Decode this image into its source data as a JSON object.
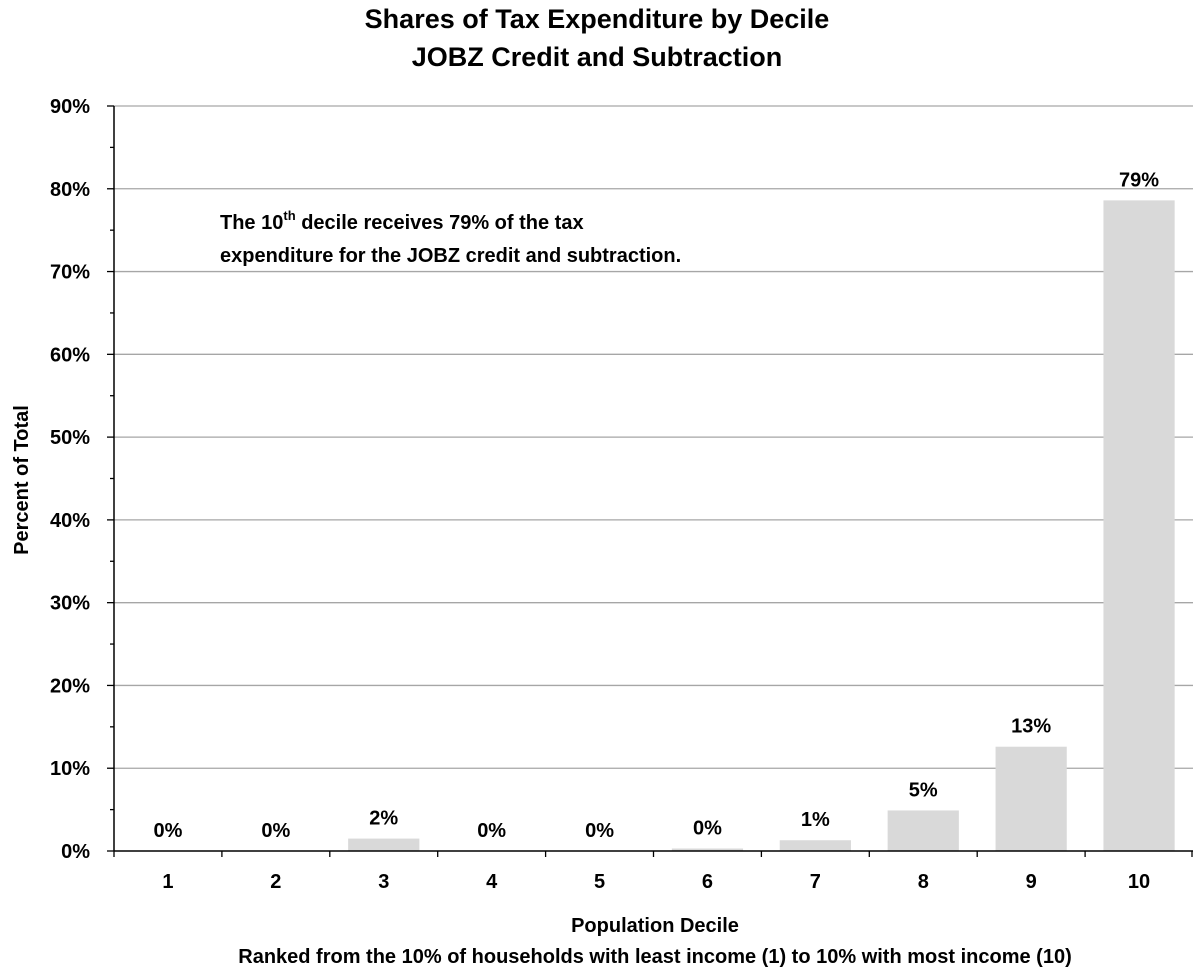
{
  "chart_data": {
    "type": "bar",
    "title": "Shares of Tax Expenditure by Decile",
    "subtitle": "JOBZ Credit and Subtraction",
    "xlabel": "Population Decile",
    "xlabel_sub": "Ranked from the 10% of households with least income (1) to 10% with most income (10)",
    "ylabel": "Percent of Total",
    "categories": [
      "1",
      "2",
      "3",
      "4",
      "5",
      "6",
      "7",
      "8",
      "9",
      "10"
    ],
    "values": [
      0.0,
      0.0,
      1.5,
      0.0,
      0.0,
      0.3,
      1.3,
      4.9,
      12.6,
      78.6
    ],
    "data_labels": [
      "0%",
      "0%",
      "2%",
      "0%",
      "0%",
      "0%",
      "1%",
      "5%",
      "13%",
      "79%"
    ],
    "ylim": [
      0,
      90
    ],
    "yticks": [
      0,
      10,
      20,
      30,
      40,
      50,
      60,
      70,
      80,
      90
    ],
    "ytick_labels": [
      "0%",
      "10%",
      "20%",
      "30%",
      "40%",
      "50%",
      "60%",
      "70%",
      "80%",
      "90%"
    ],
    "grid": true,
    "legend": "none",
    "bar_color": "#d9d9d9",
    "grid_color": "#a6a6a6",
    "annotation": {
      "line1_prefix": "The 10",
      "line1_sup": "th",
      "line1_suffix": " decile receives 79% of the tax",
      "line2": "expenditure for the JOBZ credit and subtraction."
    }
  }
}
